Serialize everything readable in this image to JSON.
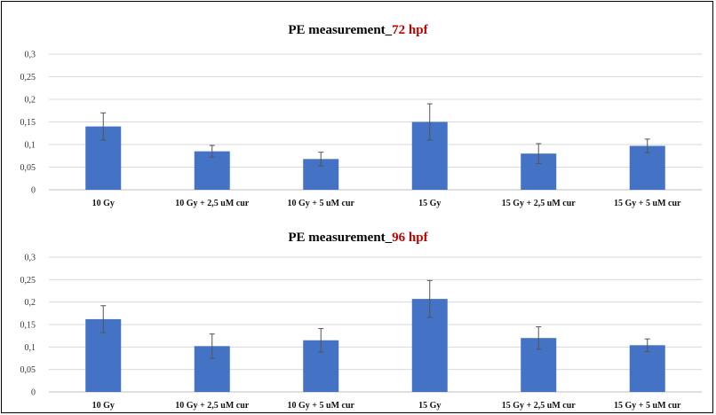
{
  "chart_data": [
    {
      "type": "bar",
      "title_main": "PE measurement_",
      "title_highlight": "72 hpf",
      "title_color": "#c00000",
      "bar_color": "#4472c4",
      "categories": [
        "10 Gy",
        "10 Gy + 2,5 uM cur",
        "10 Gy + 5 uM cur",
        "15 Gy",
        "15 Gy + 2,5 uM cur",
        "15 Gy + 5 uM cur"
      ],
      "values": [
        0.14,
        0.085,
        0.068,
        0.15,
        0.08,
        0.097
      ],
      "errors": [
        0.03,
        0.013,
        0.015,
        0.04,
        0.022,
        0.015
      ],
      "ylim": [
        0,
        0.3
      ],
      "yticks": [
        "0",
        "0,05",
        "0,1",
        "0,15",
        "0,2",
        "0,25",
        "0,3"
      ],
      "ytick_values": [
        0,
        0.05,
        0.1,
        0.15,
        0.2,
        0.25,
        0.3
      ],
      "grid": true,
      "legend": "none"
    },
    {
      "type": "bar",
      "title_main": "PE measurement_",
      "title_highlight": "96 hpf",
      "title_color": "#c00000",
      "bar_color": "#4472c4",
      "categories": [
        "10 Gy",
        "10 Gy + 2,5 uM cur",
        "10 Gy + 5 uM cur",
        "15 Gy",
        "15 Gy + 2,5 uM cur",
        "15 Gy + 5 uM cur"
      ],
      "values": [
        0.162,
        0.102,
        0.115,
        0.207,
        0.12,
        0.104
      ],
      "errors": [
        0.03,
        0.027,
        0.026,
        0.041,
        0.025,
        0.014
      ],
      "ylim": [
        0,
        0.3
      ],
      "yticks": [
        "0",
        "0,05",
        "0,1",
        "0,15",
        "0,2",
        "0,25",
        "0,3"
      ],
      "ytick_values": [
        0,
        0.05,
        0.1,
        0.15,
        0.2,
        0.25,
        0.3
      ],
      "grid": true,
      "legend": "none"
    }
  ]
}
